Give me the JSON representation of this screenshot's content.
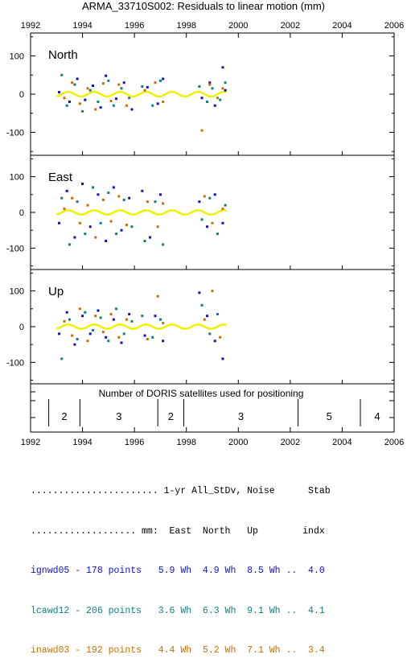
{
  "chart_data": {
    "type": "scatter",
    "title": "ARMA_33710S002: Residuals to linear motion (mm)",
    "x_ticks": [
      "1992",
      "1994",
      "1996",
      "1998",
      "2000",
      "2002",
      "2004",
      "2006"
    ],
    "x_range": [
      1992,
      2006
    ],
    "panels": [
      {
        "name": "North",
        "y_ticks": [
          "100",
          "0",
          "-100"
        ],
        "y_range": [
          -160,
          160
        ],
        "series": [
          {
            "name": "ignwd05",
            "color": "#1010c8",
            "points": [
              [
                1993.1,
                5
              ],
              [
                1993.5,
                -20
              ],
              [
                1993.8,
                40
              ],
              [
                1994.1,
                -15
              ],
              [
                1994.4,
                22
              ],
              [
                1994.7,
                -35
              ],
              [
                1994.9,
                48
              ],
              [
                1995.3,
                -12
              ],
              [
                1995.6,
                30
              ],
              [
                1995.9,
                -40
              ],
              [
                1996.5,
                18
              ],
              [
                1996.9,
                -25
              ],
              [
                1997.1,
                40
              ],
              [
                1998.6,
                -10
              ],
              [
                1998.9,
                30
              ],
              [
                1999.1,
                -30
              ],
              [
                1999.4,
                70
              ],
              [
                1999.5,
                10
              ]
            ]
          },
          {
            "name": "lcawd12",
            "color": "#0f7f7f",
            "points": [
              [
                1993.2,
                50
              ],
              [
                1993.4,
                -30
              ],
              [
                1993.7,
                25
              ],
              [
                1994.0,
                -45
              ],
              [
                1994.3,
                10
              ],
              [
                1994.6,
                -20
              ],
              [
                1995.0,
                35
              ],
              [
                1995.2,
                -30
              ],
              [
                1995.5,
                15
              ],
              [
                1995.8,
                -10
              ],
              [
                1996.3,
                20
              ],
              [
                1996.7,
                -30
              ],
              [
                1997.0,
                35
              ],
              [
                1998.5,
                20
              ],
              [
                1998.8,
                -20
              ],
              [
                1999.0,
                15
              ],
              [
                1999.3,
                -15
              ],
              [
                1999.5,
                30
              ]
            ]
          },
          {
            "name": "inawd03",
            "color": "#c86e00",
            "points": [
              [
                1993.3,
                -10
              ],
              [
                1993.6,
                30
              ],
              [
                1993.9,
                -25
              ],
              [
                1994.2,
                15
              ],
              [
                1994.5,
                -40
              ],
              [
                1994.8,
                28
              ],
              [
                1995.1,
                -18
              ],
              [
                1995.4,
                25
              ],
              [
                1995.7,
                -30
              ],
              [
                1996.4,
                10
              ],
              [
                1996.8,
                30
              ],
              [
                1997.1,
                -20
              ],
              [
                1998.6,
                -95
              ],
              [
                1998.9,
                25
              ],
              [
                1999.2,
                -10
              ],
              [
                1999.4,
                15
              ]
            ]
          }
        ]
      },
      {
        "name": "East",
        "y_ticks": [
          "100",
          "0",
          "-100"
        ],
        "y_range": [
          -160,
          160
        ],
        "series": [
          {
            "name": "ignwd05",
            "color": "#1010c8",
            "points": [
              [
                1993.1,
                -30
              ],
              [
                1993.4,
                60
              ],
              [
                1993.7,
                -70
              ],
              [
                1994.0,
                80
              ],
              [
                1994.3,
                -40
              ],
              [
                1994.6,
                50
              ],
              [
                1994.9,
                -80
              ],
              [
                1995.2,
                70
              ],
              [
                1995.5,
                -50
              ],
              [
                1995.8,
                40
              ],
              [
                1996.3,
                60
              ],
              [
                1996.6,
                -70
              ],
              [
                1997.0,
                50
              ],
              [
                1998.5,
                30
              ],
              [
                1998.8,
                -40
              ],
              [
                1999.1,
                50
              ],
              [
                1999.4,
                -30
              ]
            ]
          },
          {
            "name": "lcawd12",
            "color": "#0f7f7f",
            "points": [
              [
                1993.2,
                40
              ],
              [
                1993.5,
                -90
              ],
              [
                1993.8,
                30
              ],
              [
                1994.1,
                -60
              ],
              [
                1994.4,
                70
              ],
              [
                1994.7,
                -30
              ],
              [
                1995.0,
                55
              ],
              [
                1995.3,
                -60
              ],
              [
                1995.6,
                35
              ],
              [
                1995.9,
                -40
              ],
              [
                1996.4,
                -80
              ],
              [
                1996.8,
                30
              ],
              [
                1997.1,
                -90
              ],
              [
                1998.6,
                -20
              ],
              [
                1998.9,
                40
              ],
              [
                1999.2,
                -60
              ],
              [
                1999.5,
                20
              ]
            ]
          },
          {
            "name": "inawd03",
            "color": "#c86e00",
            "points": [
              [
                1993.3,
                10
              ],
              [
                1993.6,
                40
              ],
              [
                1993.9,
                -30
              ],
              [
                1994.2,
                20
              ],
              [
                1994.5,
                -70
              ],
              [
                1994.8,
                35
              ],
              [
                1995.1,
                -25
              ],
              [
                1995.4,
                45
              ],
              [
                1995.7,
                -35
              ],
              [
                1996.5,
                30
              ],
              [
                1996.9,
                -40
              ],
              [
                1997.1,
                25
              ],
              [
                1998.7,
                45
              ],
              [
                1999.0,
                -30
              ],
              [
                1999.4,
                10
              ]
            ]
          }
        ]
      },
      {
        "name": "Up",
        "y_ticks": [
          "100",
          "0",
          "-100"
        ],
        "y_range": [
          -160,
          160
        ],
        "series": [
          {
            "name": "ignwd05",
            "color": "#1010c8",
            "points": [
              [
                1993.1,
                -20
              ],
              [
                1993.4,
                40
              ],
              [
                1993.7,
                -50
              ],
              [
                1994.0,
                30
              ],
              [
                1994.3,
                -20
              ],
              [
                1994.6,
                45
              ],
              [
                1994.9,
                -30
              ],
              [
                1995.2,
                20
              ],
              [
                1995.5,
                -45
              ],
              [
                1995.8,
                35
              ],
              [
                1996.4,
                -25
              ],
              [
                1996.8,
                30
              ],
              [
                1997.1,
                -40
              ],
              [
                1998.5,
                95
              ],
              [
                1998.8,
                30
              ],
              [
                1999.1,
                -40
              ],
              [
                1999.4,
                -90
              ]
            ]
          },
          {
            "name": "lcawd12",
            "color": "#0f7f7f",
            "points": [
              [
                1993.2,
                -90
              ],
              [
                1993.5,
                20
              ],
              [
                1993.8,
                -35
              ],
              [
                1994.1,
                40
              ],
              [
                1994.4,
                -10
              ],
              [
                1994.7,
                25
              ],
              [
                1995.0,
                -40
              ],
              [
                1995.3,
                50
              ],
              [
                1995.6,
                -20
              ],
              [
                1995.9,
                15
              ],
              [
                1996.3,
                30
              ],
              [
                1996.7,
                -30
              ],
              [
                1997.0,
                20
              ],
              [
                1998.6,
                60
              ],
              [
                1998.9,
                -20
              ],
              [
                1999.2,
                35
              ]
            ]
          },
          {
            "name": "inawd03",
            "color": "#c86e00",
            "points": [
              [
                1993.3,
                15
              ],
              [
                1993.6,
                -25
              ],
              [
                1993.9,
                50
              ],
              [
                1994.2,
                -40
              ],
              [
                1994.5,
                30
              ],
              [
                1994.8,
                -15
              ],
              [
                1995.1,
                35
              ],
              [
                1995.4,
                -30
              ],
              [
                1995.7,
                20
              ],
              [
                1996.5,
                -35
              ],
              [
                1996.9,
                85
              ],
              [
                1997.1,
                10
              ],
              [
                1998.7,
                20
              ],
              [
                1999.0,
                100
              ],
              [
                1999.3,
                -30
              ]
            ]
          }
        ]
      }
    ],
    "satellites": {
      "label": "Number of DORIS satellites used for positioning",
      "segments": [
        {
          "start": 1992.7,
          "end": 1993.9,
          "count": "2"
        },
        {
          "start": 1993.9,
          "end": 1996.9,
          "count": "3"
        },
        {
          "start": 1996.9,
          "end": 1997.9,
          "count": "2"
        },
        {
          "start": 1997.9,
          "end": 2002.3,
          "count": "3"
        },
        {
          "start": 2002.3,
          "end": 2004.7,
          "count": "5"
        },
        {
          "start": 2004.7,
          "end": 2006.0,
          "count": "4"
        }
      ]
    }
  },
  "summary": {
    "header1": "....................... 1-yr All_StDv, Noise      Stab",
    "header2": "................... mm:  East  North   Up        indx",
    "rows": [
      {
        "text": "ignwd05 - 178 points   5.9 Wh  4.9 Wh  8.5 Wh ..  4.0",
        "color": "#1010c8"
      },
      {
        "text": "lcawd12 - 206 points   3.6 Wh  6.3 Wh  9.1 Wh ..  4.1",
        "color": "#0f7f7f"
      },
      {
        "text": "inawd03 - 192 points   4.4 Wh  5.2 Wh  7.1 Wh ..  3.4",
        "color": "#c86e00"
      }
    ]
  },
  "colors": {
    "seasonal_fit": "#f0f000"
  }
}
